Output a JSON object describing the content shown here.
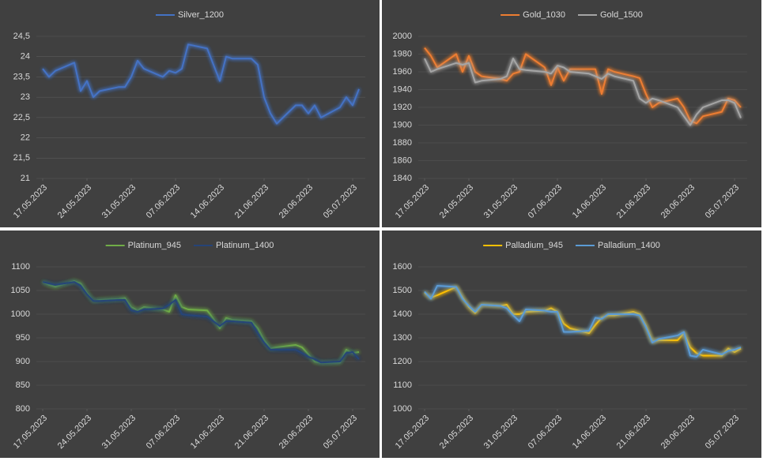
{
  "chart_data": [
    {
      "type": "line",
      "x": [
        "17.05.2023",
        "18.05.2023",
        "19.05.2023",
        "22.05.2023",
        "23.05.2023",
        "24.05.2023",
        "25.05.2023",
        "26.05.2023",
        "29.05.2023",
        "30.05.2023",
        "31.05.2023",
        "01.06.2023",
        "02.06.2023",
        "05.06.2023",
        "06.06.2023",
        "07.06.2023",
        "08.06.2023",
        "09.06.2023",
        "12.06.2023",
        "13.06.2023",
        "14.06.2023",
        "15.06.2023",
        "16.06.2023",
        "19.06.2023",
        "20.06.2023",
        "21.06.2023",
        "22.06.2023",
        "23.06.2023",
        "26.06.2023",
        "27.06.2023",
        "28.06.2023",
        "29.06.2023",
        "30.06.2023",
        "03.07.2023",
        "04.07.2023",
        "05.07.2023",
        "06.07.2023"
      ],
      "series": [
        {
          "name": "Silver_1200",
          "color": "#4472c4",
          "values": [
            23.7,
            23.5,
            23.65,
            23.85,
            23.15,
            23.4,
            23.0,
            23.15,
            23.25,
            23.25,
            23.5,
            23.9,
            23.7,
            23.5,
            23.65,
            23.6,
            23.7,
            24.3,
            24.2,
            23.8,
            23.4,
            24.0,
            23.95,
            23.95,
            23.8,
            23.0,
            22.6,
            22.35,
            22.8,
            22.8,
            22.6,
            22.8,
            22.5,
            22.75,
            23.0,
            22.8,
            23.2
          ]
        }
      ],
      "xlim": [
        "16.05.2023",
        "07.07.2023"
      ],
      "xticks": [
        "17.05.2023",
        "24.05.2023",
        "31.05.2023",
        "07.06.2023",
        "14.06.2023",
        "21.06.2023",
        "28.06.2023",
        "05.07.2023"
      ],
      "ylim": [
        21,
        24.5
      ],
      "yticks": [
        21,
        {
          "value": 21.5,
          "label": "21,5"
        },
        22,
        {
          "value": 22.5,
          "label": "22,5"
        },
        23,
        {
          "value": 23.5,
          "label": "23,5"
        },
        24,
        {
          "value": 24.5,
          "label": "24,5"
        }
      ],
      "legend": "top"
    },
    {
      "type": "line",
      "x": [
        "17.05.2023",
        "18.05.2023",
        "19.05.2023",
        "22.05.2023",
        "23.05.2023",
        "24.05.2023",
        "25.05.2023",
        "26.05.2023",
        "29.05.2023",
        "30.05.2023",
        "31.05.2023",
        "01.06.2023",
        "02.06.2023",
        "05.06.2023",
        "06.06.2023",
        "07.06.2023",
        "08.06.2023",
        "09.06.2023",
        "12.06.2023",
        "13.06.2023",
        "14.06.2023",
        "15.06.2023",
        "16.06.2023",
        "19.06.2023",
        "20.06.2023",
        "21.06.2023",
        "22.06.2023",
        "23.06.2023",
        "26.06.2023",
        "27.06.2023",
        "28.06.2023",
        "29.06.2023",
        "30.06.2023",
        "03.07.2023",
        "04.07.2023",
        "05.07.2023",
        "06.07.2023"
      ],
      "series": [
        {
          "name": "Gold_1030",
          "color": "#ed7d31",
          "values": [
            1987,
            1978,
            1965,
            1980,
            1960,
            1978,
            1960,
            1955,
            1952,
            1950,
            1958,
            1960,
            1980,
            1965,
            1945,
            1965,
            1950,
            1963,
            1963,
            1963,
            1935,
            1963,
            1960,
            1955,
            1953,
            1935,
            1920,
            1925,
            1930,
            1920,
            1905,
            1902,
            1910,
            1915,
            1930,
            1928,
            1920
          ]
        },
        {
          "name": "Gold_1500",
          "color": "#a5a5a5",
          "values": [
            1975,
            1960,
            1963,
            1970,
            1968,
            1970,
            1948,
            1950,
            1952,
            1955,
            1975,
            1963,
            1962,
            1960,
            1958,
            1967,
            1965,
            1960,
            1958,
            1955,
            1952,
            1958,
            1955,
            1950,
            1930,
            1925,
            1930,
            1928,
            1920,
            1910,
            1900,
            1912,
            1920,
            1928,
            1928,
            1925,
            1908
          ]
        }
      ],
      "xlim": [
        "16.05.2023",
        "07.07.2023"
      ],
      "xticks": [
        "17.05.2023",
        "24.05.2023",
        "31.05.2023",
        "07.06.2023",
        "14.06.2023",
        "21.06.2023",
        "28.06.2023",
        "05.07.2023"
      ],
      "ylim": [
        1840,
        2000
      ],
      "yticks": [
        1840,
        1860,
        1880,
        1900,
        1920,
        1940,
        1960,
        1980,
        2000
      ],
      "legend": "top"
    },
    {
      "type": "line",
      "x": [
        "17.05.2023",
        "18.05.2023",
        "19.05.2023",
        "22.05.2023",
        "23.05.2023",
        "24.05.2023",
        "25.05.2023",
        "26.05.2023",
        "29.05.2023",
        "30.05.2023",
        "31.05.2023",
        "01.06.2023",
        "02.06.2023",
        "05.06.2023",
        "06.06.2023",
        "07.06.2023",
        "08.06.2023",
        "09.06.2023",
        "12.06.2023",
        "13.06.2023",
        "14.06.2023",
        "15.06.2023",
        "16.06.2023",
        "19.06.2023",
        "20.06.2023",
        "21.06.2023",
        "22.06.2023",
        "23.06.2023",
        "26.06.2023",
        "27.06.2023",
        "28.06.2023",
        "29.06.2023",
        "30.06.2023",
        "03.07.2023",
        "04.07.2023",
        "05.07.2023",
        "06.07.2023"
      ],
      "series": [
        {
          "name": "Platinum_945",
          "color": "#70ad47",
          "values": [
            1068,
            1062,
            1058,
            1070,
            1065,
            1045,
            1028,
            1030,
            1032,
            1034,
            1015,
            1008,
            1015,
            1010,
            1005,
            1040,
            1015,
            1010,
            1008,
            990,
            970,
            992,
            988,
            985,
            970,
            945,
            928,
            930,
            935,
            930,
            915,
            900,
            897,
            898,
            925,
            918,
            920
          ]
        },
        {
          "name": "Platinum_1400",
          "color": "#264478",
          "values": [
            1068,
            1065,
            1062,
            1068,
            1060,
            1042,
            1028,
            1028,
            1030,
            1030,
            1008,
            1005,
            1010,
            1012,
            1020,
            1030,
            1000,
            998,
            995,
            985,
            975,
            985,
            985,
            982,
            960,
            940,
            925,
            925,
            925,
            918,
            910,
            905,
            898,
            900,
            918,
            920,
            905
          ]
        }
      ],
      "xlim": [
        "16.05.2023",
        "07.07.2023"
      ],
      "xticks": [
        "17.05.2023",
        "24.05.2023",
        "31.05.2023",
        "07.06.2023",
        "14.06.2023",
        "21.06.2023",
        "28.06.2023",
        "05.07.2023"
      ],
      "ylim": [
        800,
        1100
      ],
      "yticks": [
        800,
        850,
        900,
        950,
        1000,
        1050,
        1100
      ],
      "legend": "top"
    },
    {
      "type": "line",
      "x": [
        "17.05.2023",
        "18.05.2023",
        "19.05.2023",
        "22.05.2023",
        "23.05.2023",
        "24.05.2023",
        "25.05.2023",
        "26.05.2023",
        "29.05.2023",
        "30.05.2023",
        "31.05.2023",
        "01.06.2023",
        "02.06.2023",
        "05.06.2023",
        "06.06.2023",
        "07.06.2023",
        "08.06.2023",
        "09.06.2023",
        "12.06.2023",
        "13.06.2023",
        "14.06.2023",
        "15.06.2023",
        "16.06.2023",
        "19.06.2023",
        "20.06.2023",
        "21.06.2023",
        "22.06.2023",
        "23.06.2023",
        "26.06.2023",
        "27.06.2023",
        "28.06.2023",
        "29.06.2023",
        "30.06.2023",
        "03.07.2023",
        "04.07.2023",
        "05.07.2023",
        "06.07.2023"
      ],
      "series": [
        {
          "name": "Palladium_945",
          "color": "#ffc000",
          "values": [
            1490,
            1470,
            1480,
            1515,
            1470,
            1430,
            1405,
            1440,
            1435,
            1440,
            1400,
            1400,
            1410,
            1415,
            1425,
            1410,
            1360,
            1340,
            1320,
            1355,
            1385,
            1395,
            1395,
            1410,
            1400,
            1350,
            1285,
            1290,
            1290,
            1320,
            1260,
            1235,
            1225,
            1225,
            1255,
            1240,
            1255
          ]
        },
        {
          "name": "Palladium_1400",
          "color": "#5b9bd5",
          "values": [
            1495,
            1465,
            1520,
            1515,
            1465,
            1435,
            1410,
            1440,
            1435,
            1425,
            1395,
            1370,
            1420,
            1415,
            1410,
            1410,
            1325,
            1325,
            1330,
            1385,
            1380,
            1400,
            1400,
            1400,
            1395,
            1345,
            1280,
            1295,
            1310,
            1325,
            1225,
            1220,
            1250,
            1230,
            1245,
            1250,
            1260
          ]
        }
      ],
      "xlim": [
        "16.05.2023",
        "07.07.2023"
      ],
      "xticks": [
        "17.05.2023",
        "24.05.2023",
        "31.05.2023",
        "07.06.2023",
        "14.06.2023",
        "21.06.2023",
        "28.06.2023",
        "05.07.2023"
      ],
      "ylim": [
        1000,
        1600
      ],
      "yticks": [
        1000,
        1100,
        1200,
        1300,
        1400,
        1500,
        1600
      ],
      "legend": "top"
    }
  ]
}
